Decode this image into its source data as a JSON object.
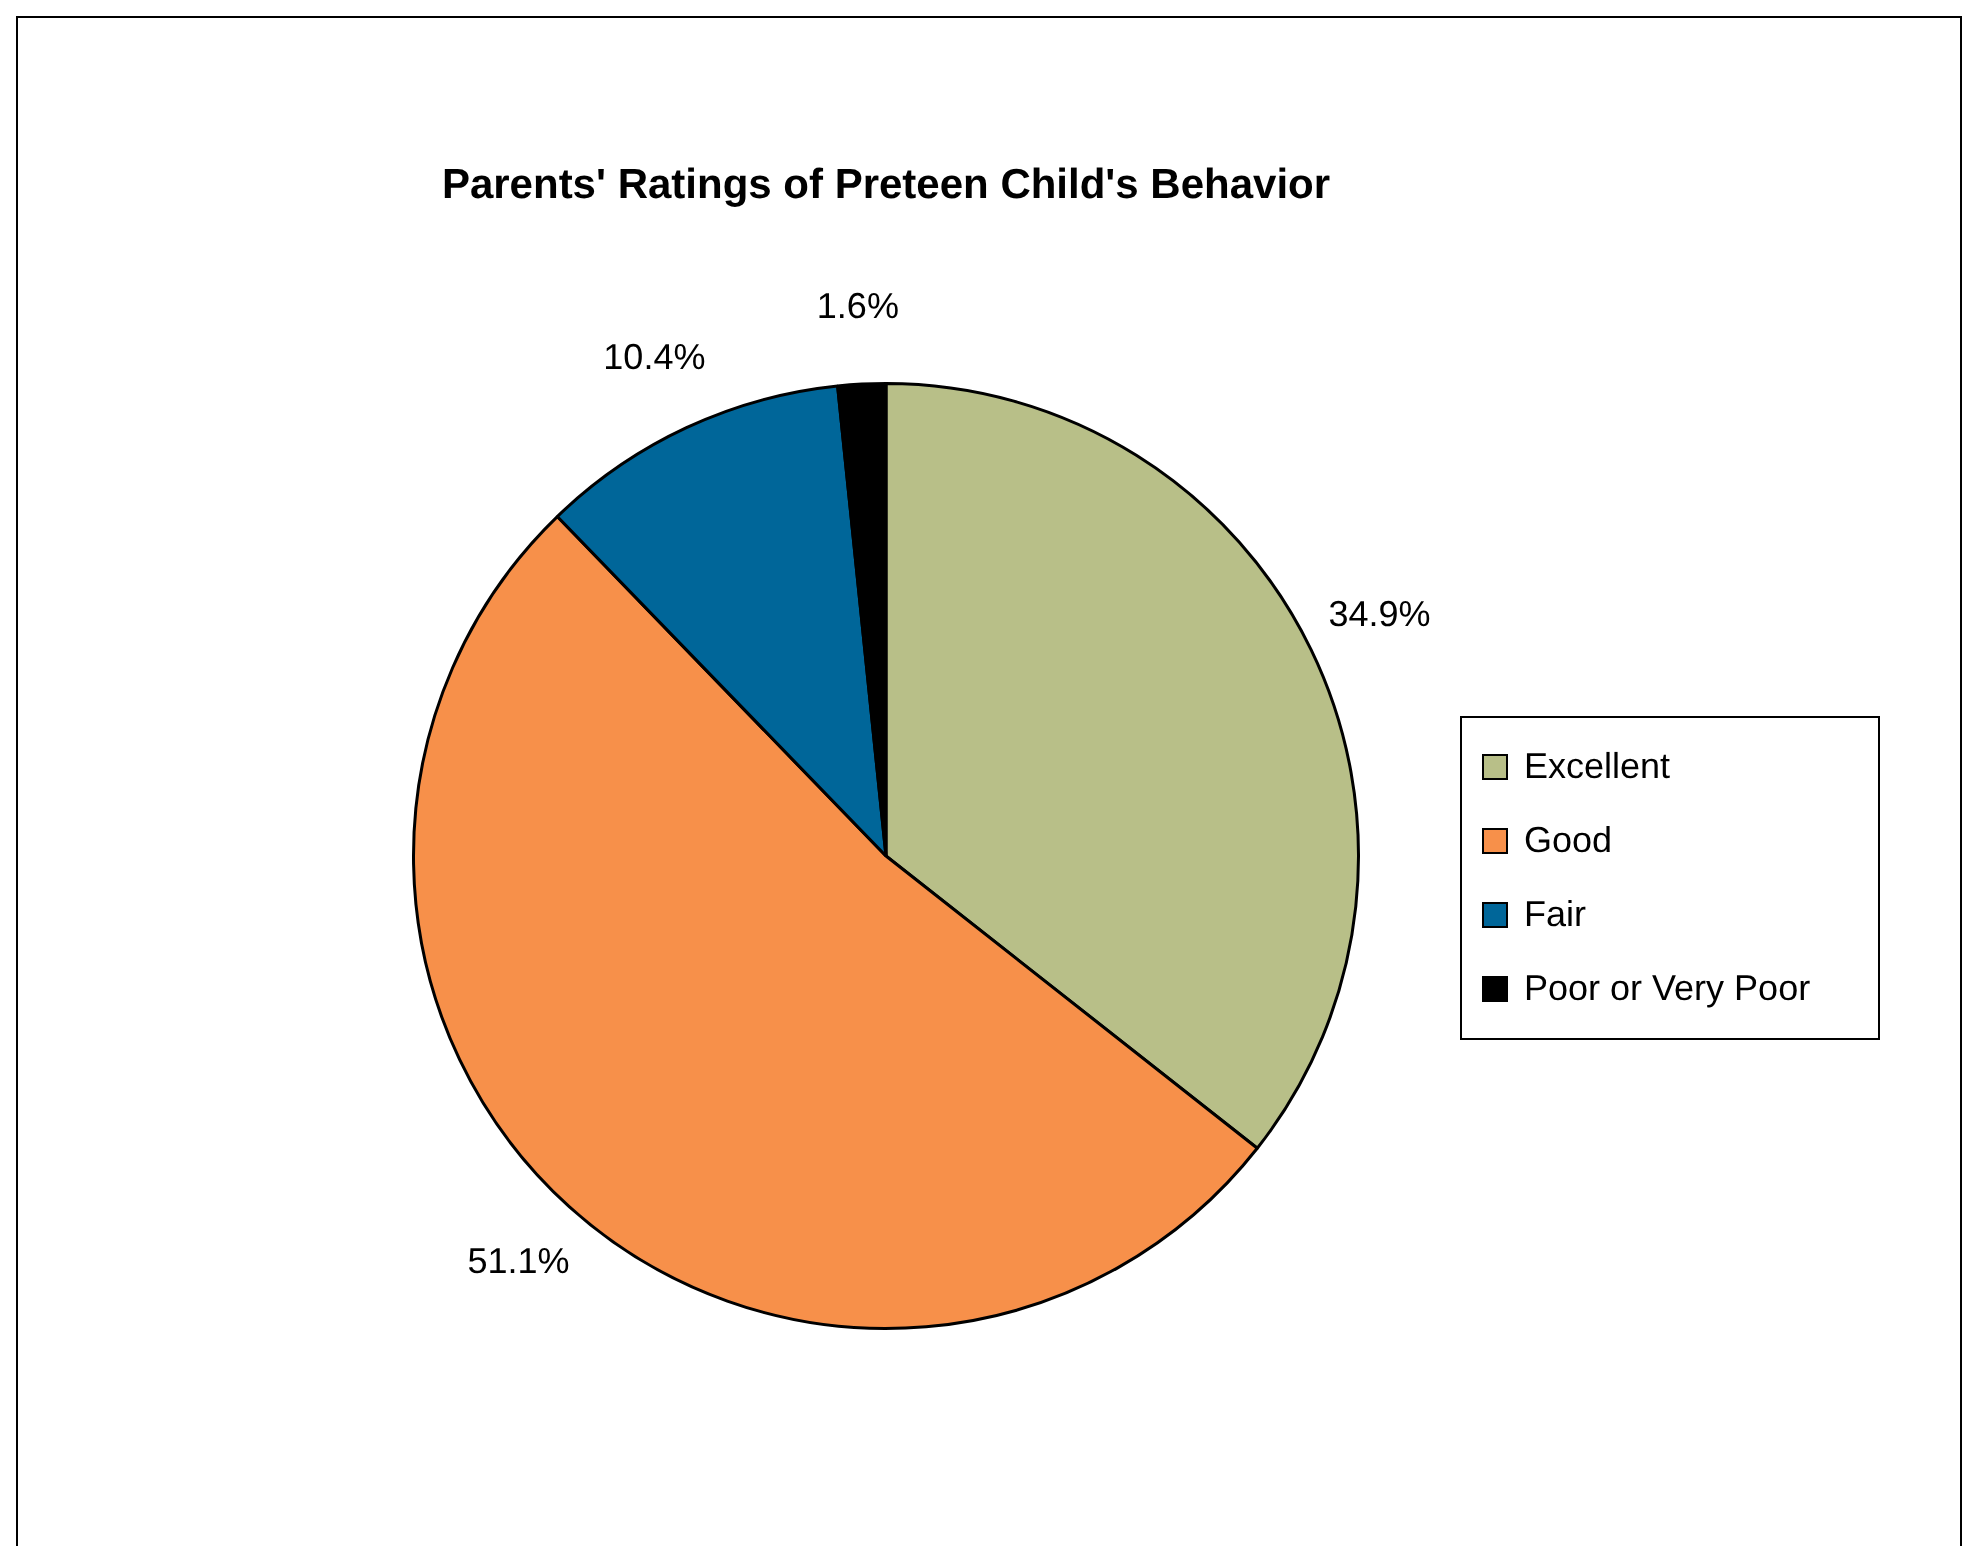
{
  "chart_data": {
    "type": "pie",
    "title": "Parents' Ratings of Preteen Child's Behavior",
    "categories": [
      "Excellent",
      "Good",
      "Fair",
      "Poor or Very Poor"
    ],
    "values": [
      34.9,
      51.1,
      10.4,
      1.6
    ],
    "colors": [
      "#b8bf88",
      "#f7904a",
      "#006699",
      "#000000"
    ],
    "value_labels": [
      "34.9%",
      "51.1%",
      "10.4%",
      "1.6%"
    ],
    "legend": "right"
  }
}
